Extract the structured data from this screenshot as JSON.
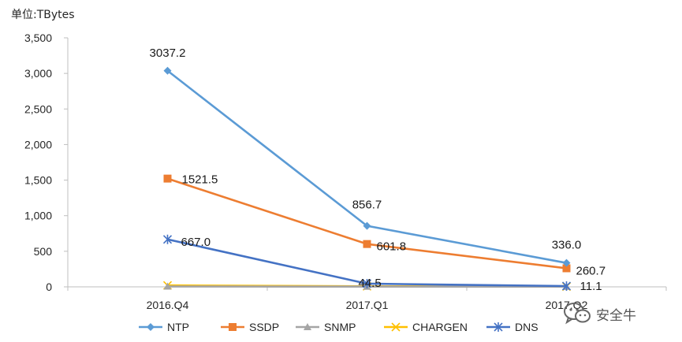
{
  "chart_data": {
    "type": "line",
    "unit_label": "单位:TBytes",
    "categories": [
      "2016.Q4",
      "2017.Q1",
      "2017.Q2"
    ],
    "ylim": [
      0,
      3500
    ],
    "yticks": [
      "0",
      "500",
      "1,000",
      "1,500",
      "2,000",
      "2,500",
      "3,000",
      "3,500"
    ],
    "ytick_values": [
      0,
      500,
      1000,
      1500,
      2000,
      2500,
      3000,
      3500
    ],
    "legend_position": "bottom",
    "series": [
      {
        "name": "NTP",
        "values": [
          3037.2,
          856.7,
          336.0
        ],
        "labels": [
          "3037.2",
          "856.7",
          "336.0"
        ],
        "color": "#5B9BD5",
        "marker": "diamond"
      },
      {
        "name": "SSDP",
        "values": [
          1521.5,
          601.8,
          260.7
        ],
        "labels": [
          "1521.5",
          "601.8",
          "260.7"
        ],
        "color": "#ED7D31",
        "marker": "square"
      },
      {
        "name": "SNMP",
        "values": [
          5,
          3,
          2
        ],
        "labels": [],
        "color": "#A5A5A5",
        "marker": "triangle"
      },
      {
        "name": "CHARGEN",
        "values": [
          20,
          8,
          3
        ],
        "labels": [],
        "color": "#FFC000",
        "marker": "x"
      },
      {
        "name": "DNS",
        "values": [
          667.0,
          44.5,
          11.1
        ],
        "labels": [
          "667.0",
          "44.5",
          "11.1"
        ],
        "color": "#4472C4",
        "marker": "star"
      }
    ]
  },
  "watermark": {
    "text": "安全牛",
    "icon": "wechat-icon"
  }
}
